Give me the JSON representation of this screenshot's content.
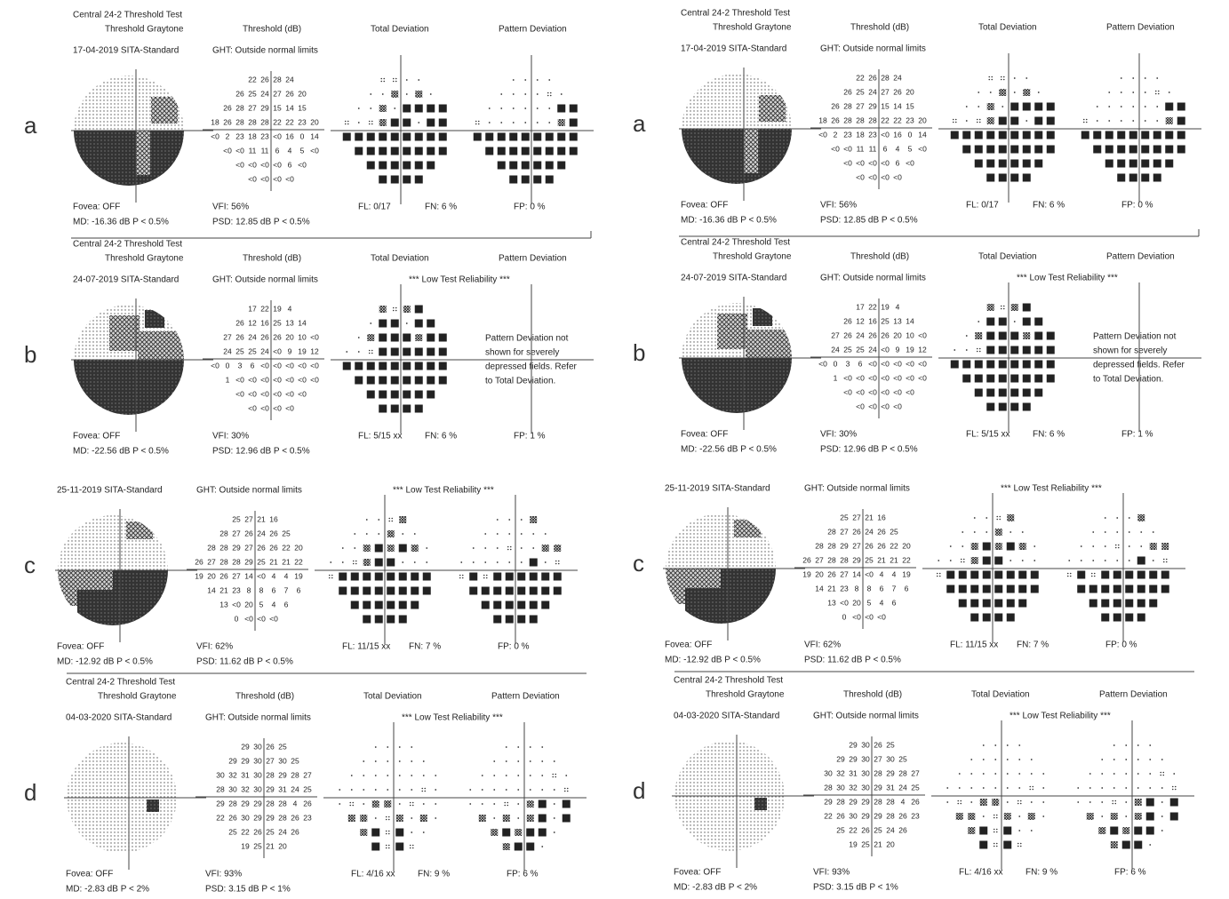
{
  "panels": [
    {
      "label": "a",
      "test": "Central 24-2 Threshold Test",
      "graytone": "Threshold Graytone",
      "threshold_title": "Threshold (dB)",
      "total_title": "Total Deviation",
      "pattern_title": "Pattern Deviation",
      "date": "17-04-2019 SITA-Standard",
      "ght": "GHT: Outside normal limits",
      "threshold": [
        [
          22,
          26,
          28,
          24
        ],
        [
          26,
          25,
          24,
          27,
          26,
          20
        ],
        [
          26,
          28,
          27,
          29,
          15,
          14,
          15
        ],
        [
          18,
          26,
          28,
          28,
          28,
          22,
          22,
          23,
          20
        ],
        [
          "<0",
          2,
          23,
          18,
          23,
          "<0",
          16,
          0,
          14
        ],
        [
          "<0",
          "<0",
          11,
          11,
          6,
          4,
          5,
          "<0"
        ],
        [
          "<0",
          "<0",
          "<0",
          "<0",
          6,
          "<0"
        ],
        [
          "<0",
          "<0",
          "<0",
          "<0"
        ]
      ],
      "fovea": "Fovea: OFF",
      "md": "MD: -16.36 dB  P < 0.5%",
      "vfi": "VFI:  56%",
      "psd": "PSD:  12.85 dB  P < 0.5%",
      "fl": "FL: 0/17",
      "fn": "FN:  6 %",
      "fp": "FP:  0 %"
    },
    {
      "label": "b",
      "test": "Central 24-2 Threshold Test",
      "graytone": "Threshold Graytone",
      "threshold_title": "Threshold (dB)",
      "total_title": "Total Deviation",
      "pattern_title": "Pattern Deviation",
      "date": "24-07-2019 SITA-Standard",
      "ght": "GHT: Outside normal limits",
      "reliability": "*** Low Test Reliability ***",
      "note": [
        "Pattern Deviation not",
        "shown for severely",
        "depressed fields. Refer",
        "to Total Deviation."
      ],
      "threshold": [
        [
          17,
          22,
          19,
          4
        ],
        [
          26,
          12,
          16,
          25,
          13,
          14
        ],
        [
          27,
          26,
          24,
          26,
          26,
          20,
          10,
          "<0"
        ],
        [
          24,
          25,
          25,
          24,
          "<0",
          9,
          19,
          12
        ],
        [
          "<0",
          0,
          3,
          6,
          "<0",
          "<0",
          "<0",
          "<0",
          "<0"
        ],
        [
          1,
          "<0",
          "<0",
          "<0",
          "<0",
          "<0",
          "<0",
          "<0"
        ],
        [
          "<0",
          "<0",
          "<0",
          "<0",
          "<0",
          "<0"
        ],
        [
          "<0",
          "<0",
          "<0",
          "<0"
        ]
      ],
      "fovea": "Fovea: OFF",
      "md": "MD: -22.56 dB  P < 0.5%",
      "vfi": "VFI:  30%",
      "psd": "PSD:  12.96 dB  P < 0.5%",
      "fl": "FL: 5/15 xx",
      "fn": "FN:  6 %",
      "fp": "FP:  1 %"
    },
    {
      "label": "c",
      "date": "25-11-2019 SITA-Standard",
      "ght": "GHT: Outside normal limits",
      "reliability": "*** Low Test Reliability ***",
      "threshold": [
        [
          25,
          27,
          21,
          16
        ],
        [
          28,
          27,
          26,
          24,
          26,
          25
        ],
        [
          28,
          28,
          29,
          27,
          26,
          26,
          22,
          20
        ],
        [
          26,
          27,
          28,
          28,
          29,
          25,
          21,
          21,
          22
        ],
        [
          19,
          20,
          26,
          27,
          14,
          "<0",
          4,
          4,
          19
        ],
        [
          14,
          21,
          23,
          8,
          8,
          6,
          7,
          6
        ],
        [
          13,
          "<0",
          20,
          5,
          4,
          6
        ],
        [
          0,
          "<0",
          "<0",
          "<0"
        ]
      ],
      "fovea": "Fovea: OFF",
      "md": "MD: -12.92 dB  P < 0.5%",
      "vfi": "VFI:  62%",
      "psd": "PSD:  11.62 dB  P < 0.5%",
      "fl": "FL: 11/15 xx",
      "fn": "FN:  7 %",
      "fp": "FP:  0 %"
    },
    {
      "label": "d",
      "test": "Central 24-2 Threshold Test",
      "graytone": "Threshold Graytone",
      "threshold_title": "Threshold (dB)",
      "total_title": "Total Deviation",
      "pattern_title": "Pattern Deviation",
      "date": "04-03-2020 SITA-Standard",
      "ght": "GHT: Outside normal limits",
      "reliability": "*** Low Test Reliability ***",
      "threshold": [
        [
          29,
          30,
          26,
          25
        ],
        [
          29,
          29,
          30,
          27,
          30,
          25
        ],
        [
          30,
          32,
          31,
          30,
          28,
          29,
          28,
          27
        ],
        [
          28,
          30,
          32,
          30,
          29,
          31,
          24,
          25
        ],
        [
          29,
          28,
          29,
          29,
          28,
          28,
          4,
          26
        ],
        [
          22,
          26,
          30,
          29,
          29,
          28,
          26,
          23
        ],
        [
          25,
          22,
          26,
          25,
          24,
          26
        ],
        [
          19,
          25,
          21,
          20
        ]
      ],
      "fovea": "Fovea: OFF",
      "md": "MD:  -2.83 dB  P < 2%",
      "vfi": "VFI:  93%",
      "psd": "PSD:  3.15 dB  P < 1%",
      "fl": "FL: 4/16 xx",
      "fn": "FN:  9 %",
      "fp": "FP:  6 %"
    }
  ]
}
